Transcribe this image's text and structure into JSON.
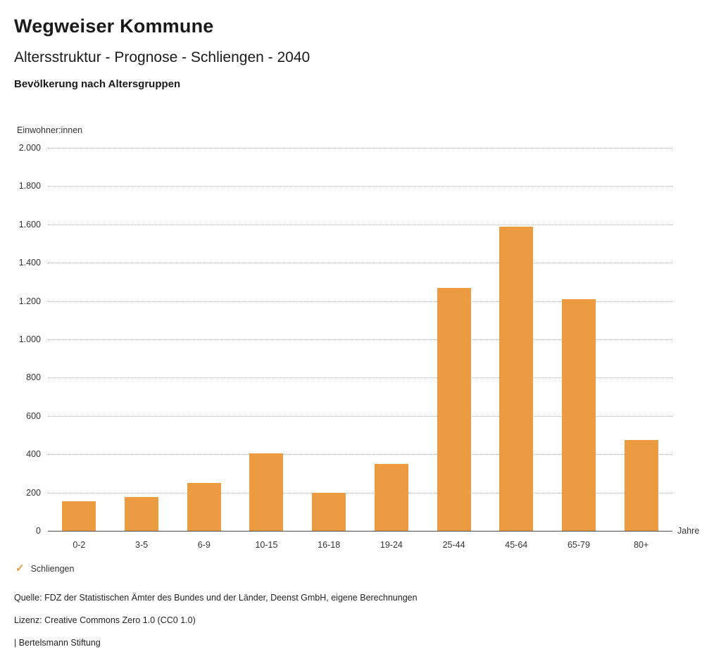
{
  "header": {
    "title": "Wegweiser Kommune",
    "subtitle": "Altersstruktur - Prognose - Schliengen - 2040",
    "chart_heading": "Bevölkerung nach Altersgruppen"
  },
  "chart_data": {
    "type": "bar",
    "title": "Bevölkerung nach Altersgruppen",
    "categories": [
      "0-2",
      "3-5",
      "6-9",
      "10-15",
      "16-18",
      "19-24",
      "25-44",
      "45-64",
      "65-79",
      "80+"
    ],
    "values": [
      155,
      175,
      250,
      405,
      200,
      350,
      1270,
      1590,
      1210,
      475
    ],
    "series_name": "Schliengen",
    "xlabel": "Jahre",
    "ylabel": "Einwohner:innen",
    "ylim": [
      0,
      2000
    ],
    "ytick_step": 200,
    "ytick_labels": [
      "0",
      "200",
      "400",
      "600",
      "800",
      "1.000",
      "1.200",
      "1.400",
      "1.600",
      "1.800",
      "2.000"
    ],
    "grid": "horizontal dotted",
    "legend_position": "bottom-left",
    "bar_color": "#ED9B40"
  },
  "legend": {
    "check_icon": "✓",
    "label": "Schliengen"
  },
  "footer": {
    "source": "Quelle: FDZ der Statistischen Ämter des Bundes und der Länder, Deenst GmbH, eigene Berechnungen",
    "license": "Lizenz: Creative Commons Zero 1.0 (CC0 1.0)",
    "attribution": "| Bertelsmann Stiftung"
  }
}
